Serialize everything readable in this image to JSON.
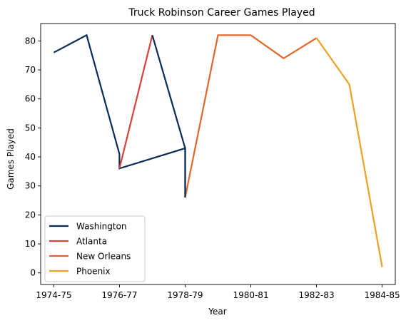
{
  "chart_data": {
    "type": "line",
    "title": "Truck Robinson Career Games Played",
    "xlabel": "Year",
    "ylabel": "Games Played",
    "ylim": [
      -4,
      86
    ],
    "yticks": [
      0,
      10,
      20,
      30,
      40,
      50,
      60,
      70,
      80
    ],
    "xticks": [
      {
        "x": 1974,
        "label": "1974-75"
      },
      {
        "x": 1976,
        "label": "1976-77"
      },
      {
        "x": 1978,
        "label": "1978-79"
      },
      {
        "x": 1980,
        "label": "1980-81"
      },
      {
        "x": 1982,
        "label": "1982-83"
      },
      {
        "x": 1984,
        "label": "1984-85"
      }
    ],
    "xlim": [
      1973.6,
      1984.4
    ],
    "legend_position": "lower-left",
    "grid": false,
    "series": [
      {
        "name": "Washington",
        "color": "#0b2c5a",
        "x": [
          1974,
          1975,
          1976,
          1976,
          1978,
          1978
        ],
        "y": [
          76,
          82,
          41,
          36,
          43,
          26
        ]
      },
      {
        "name": "Atlanta",
        "color": "#d9423f",
        "x": [
          1976,
          1977
        ],
        "y": [
          36,
          82
        ]
      },
      {
        "name": "New Orleans",
        "color": "#e0672a",
        "x": [
          1978,
          1979,
          1980,
          1981,
          1982
        ],
        "y": [
          26,
          82,
          82,
          74,
          81
        ]
      },
      {
        "name": "Phoenix",
        "color": "#f0a020",
        "x": [
          1982,
          1983,
          1984
        ],
        "y": [
          81,
          65,
          2
        ]
      },
      {
        "name": "",
        "color": "#0b2c5a",
        "x": [
          1977,
          1978,
          1978
        ],
        "y": [
          82,
          43,
          26
        ]
      }
    ]
  }
}
